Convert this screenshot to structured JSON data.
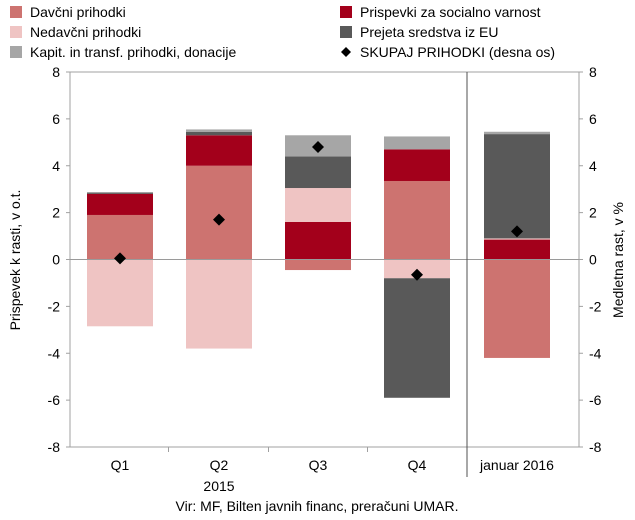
{
  "chart_data": {
    "type": "bar",
    "stacked": true,
    "categories": [
      "Q1",
      "Q2",
      "Q3",
      "Q4",
      "januar 2016"
    ],
    "year_label": "2015",
    "ylabel_left": "Prispevek k rasti, v o.t.",
    "ylabel_right": "Medletna rast, v %",
    "ylim": [
      -8,
      8
    ],
    "yticks": [
      -8,
      -6,
      -4,
      -2,
      0,
      2,
      4,
      6,
      8
    ],
    "grid": false,
    "legend_position": "top",
    "source": "Vir: MF, Bilten javnih financ, preračuni UMAR.",
    "series": [
      {
        "name": "Davčni prihodki",
        "color": "#cd7370",
        "values": [
          1.9,
          4.0,
          -0.45,
          3.35,
          -4.2
        ]
      },
      {
        "name": "Prispevki za socialno varnost",
        "color": "#a3001b",
        "values": [
          0.9,
          1.3,
          1.6,
          1.35,
          0.85
        ]
      },
      {
        "name": "Nedavčni prihodki",
        "color": "#efc4c3",
        "values": [
          -2.85,
          -3.8,
          1.45,
          -0.8,
          0.05
        ]
      },
      {
        "name": "Prejeta sredstva iz EU",
        "color": "#595959",
        "values": [
          0.05,
          0.15,
          1.35,
          -5.1,
          4.45
        ]
      },
      {
        "name": "Kapit. in transf. prihodki, donacije",
        "color": "#a6a6a6",
        "values": [
          0.03,
          0.1,
          0.9,
          0.55,
          0.1
        ]
      }
    ],
    "total_series": {
      "name": "SKUPAJ PRIHODKI (desna os)",
      "axis": "right",
      "color": "#000000",
      "values": [
        0.05,
        1.7,
        4.8,
        -0.65,
        1.2
      ]
    }
  }
}
